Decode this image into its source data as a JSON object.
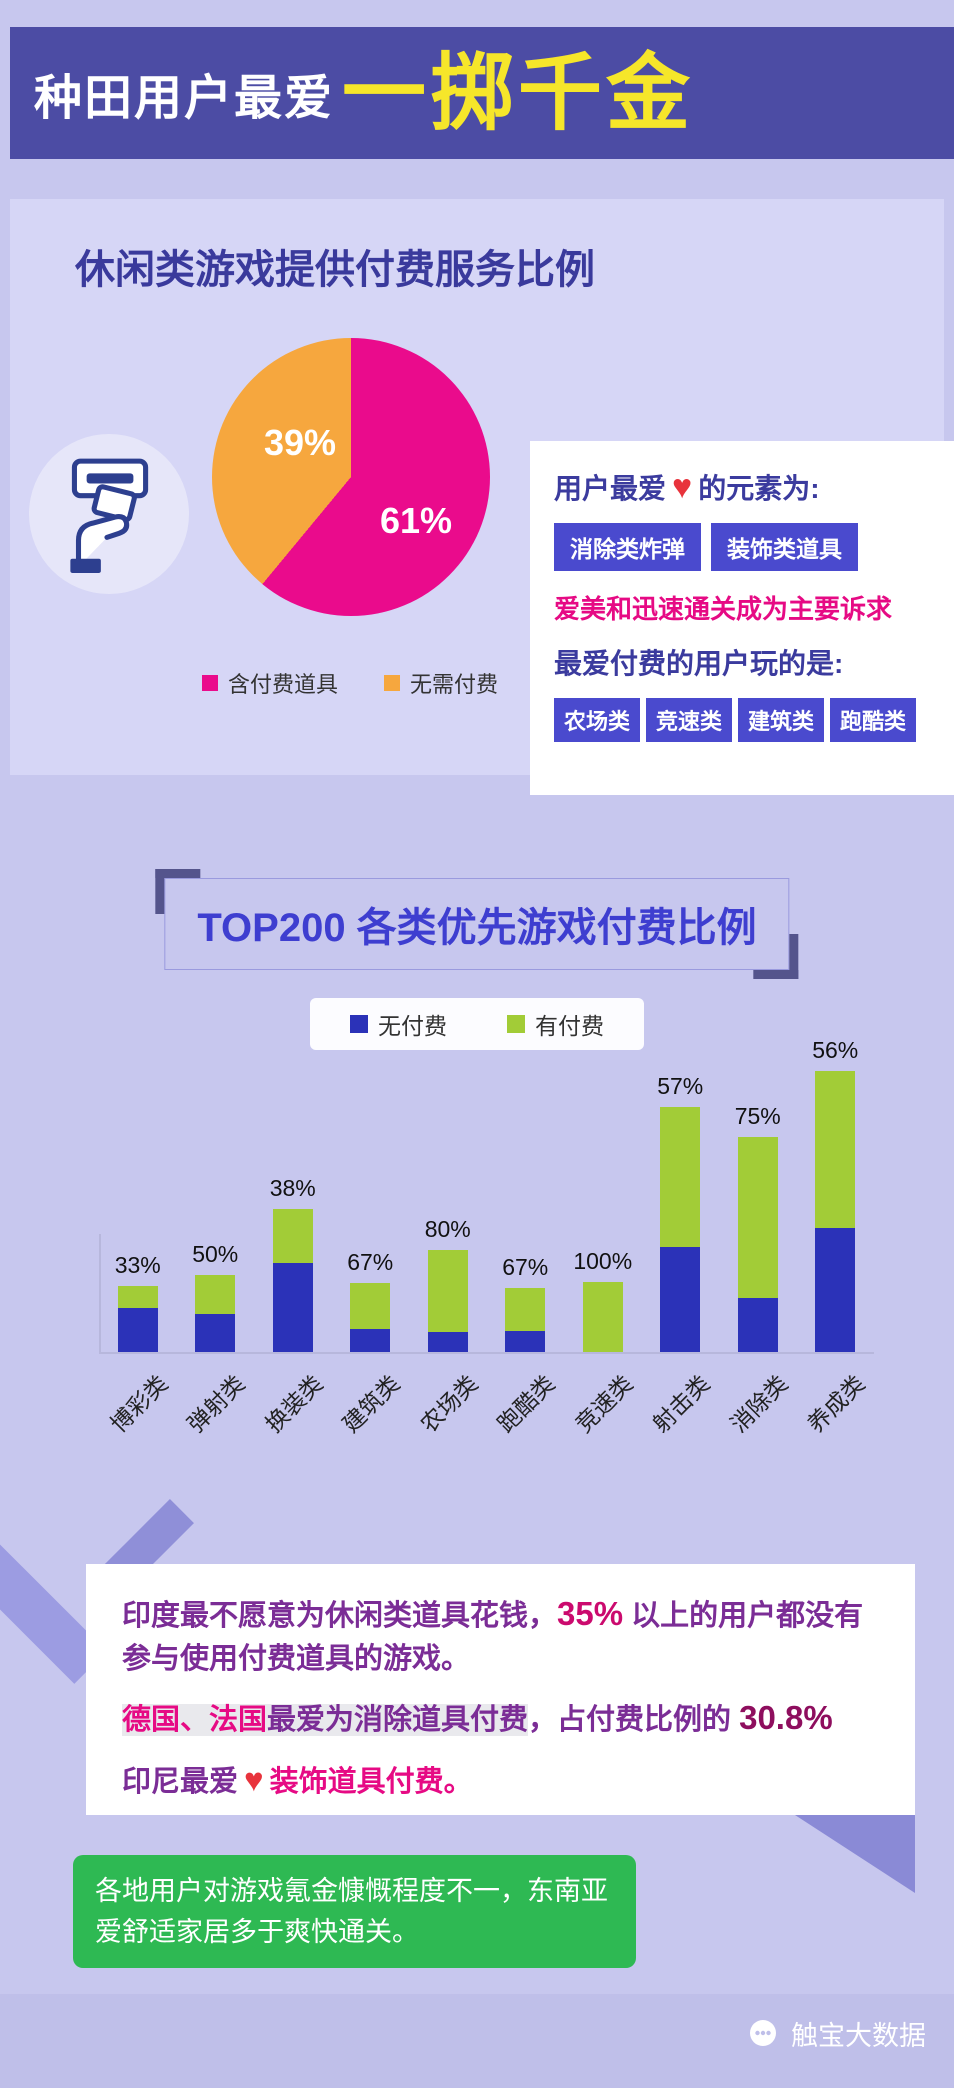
{
  "header": {
    "title_prefix": "种田用户最爱",
    "title_highlight": "一掷千金",
    "bg_color": "#4c4ca4",
    "highlight_color": "#f6e62a"
  },
  "chart_data": [
    {
      "type": "pie",
      "title": "休闲类游戏提供付费服务比例",
      "slices": [
        {
          "label": "含付费道具",
          "value": 61,
          "pct_label": "61%",
          "color": "#ea0b8c"
        },
        {
          "label": "无需付费",
          "value": 39,
          "pct_label": "39%",
          "color": "#f6a73e"
        }
      ],
      "legend_position": "bottom"
    },
    {
      "type": "stacked-bar",
      "title": "TOP200 各类优先游戏付费比例",
      "categories": [
        "博彩类",
        "弹射类",
        "换装类",
        "建筑类",
        "农场类",
        "跑酷类",
        "竞速类",
        "射击类",
        "消除类",
        "养成类"
      ],
      "series": [
        {
          "name": "无付费",
          "color": "#2b32b8"
        },
        {
          "name": "有付费",
          "color": "#a2cc37"
        }
      ],
      "paid_pct": [
        33,
        50,
        38,
        67,
        80,
        67,
        100,
        57,
        75,
        56
      ],
      "pct_labels": [
        "33%",
        "50%",
        "38%",
        "67%",
        "80%",
        "67%",
        "100%",
        "57%",
        "75%",
        "56%"
      ],
      "total_height_rel": [
        66,
        77,
        143,
        69,
        102,
        64,
        70,
        245,
        215,
        281
      ],
      "legend_position": "top"
    }
  ],
  "info_card": {
    "line1_prefix": "用户最爱",
    "line1_suffix": "的元素为:",
    "heart": "♥",
    "tags_row1": [
      "消除类炸弹",
      "装饰类道具"
    ],
    "claim": "爱美和迅速通关成为主要诉求",
    "line2": "最爱付费的用户玩的是:",
    "tags_row2": [
      "农场类",
      "竞速类",
      "建筑类",
      "跑酷类"
    ]
  },
  "note": {
    "line1_a": "印度最不愿意为休闲类道具花钱，",
    "line1_pct": "35%",
    "line1_b": " 以上的用户都没有参与使用付费道具的游戏。",
    "line2_countries": "德国、法国",
    "line2_a": "最爱为消除道具付费",
    "line2_b": "，占付费比例的 ",
    "line2_pct": "30.8%",
    "line3_a": "印尼最爱",
    "heart": "♥",
    "line3_b": "装饰道具付费。"
  },
  "green_note": "各地用户对游戏氪金慷慨程度不一，东南亚爱舒适家居多于爽快通关。",
  "footer": {
    "brand": "触宝大数据"
  }
}
